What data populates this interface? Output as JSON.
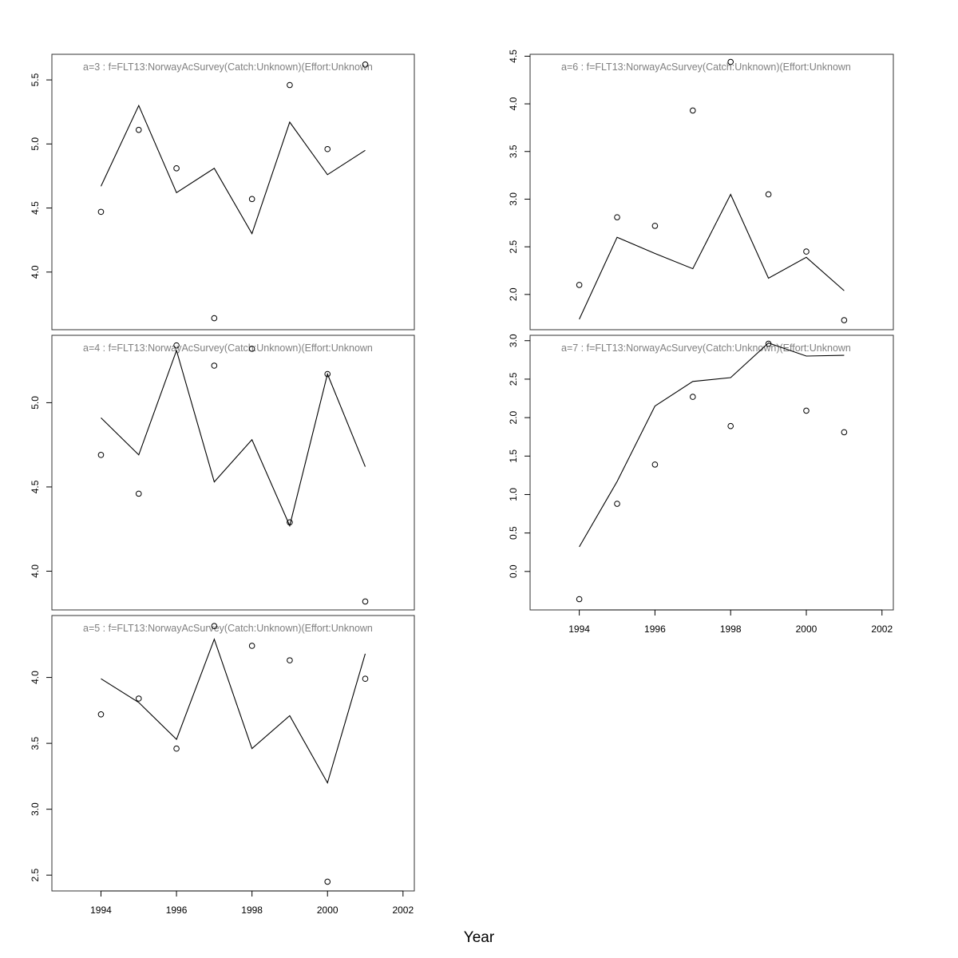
{
  "chart_data": {
    "type": "line",
    "xlabel": "Year",
    "xlim": [
      1992.7,
      2002.3
    ],
    "x_ticks": [
      1994,
      1996,
      1998,
      2000,
      2002
    ],
    "panels": [
      {
        "id": "a3",
        "title": "a=3  :  f=FLT13:NorwayAcSurvey(Catch:Unknown)(Effort:Unknown",
        "ylim": [
          3.55,
          5.7
        ],
        "y_ticks": [
          "4.0",
          "4.5",
          "5.0",
          "5.5"
        ],
        "x": [
          1994,
          1995,
          1996,
          1997,
          1998,
          1999,
          2000,
          2001
        ],
        "fitted": [
          4.67,
          5.3,
          4.62,
          4.81,
          4.3,
          5.17,
          4.76,
          4.95
        ],
        "observed": [
          4.47,
          5.11,
          4.81,
          3.64,
          4.57,
          5.46,
          4.96,
          5.62
        ]
      },
      {
        "id": "a4",
        "title": "a=4  :  f=FLT13:NorwayAcSurvey(Catch:Unknown)(Effort:Unknown",
        "ylim": [
          3.77,
          5.4
        ],
        "y_ticks": [
          "4.0",
          "4.5",
          "5.0"
        ],
        "x": [
          1994,
          1995,
          1996,
          1997,
          1998,
          1999,
          2000,
          2001
        ],
        "fitted": [
          4.91,
          4.69,
          5.31,
          4.53,
          4.78,
          4.27,
          5.17,
          4.62
        ],
        "observed": [
          4.69,
          4.46,
          5.34,
          5.22,
          5.32,
          4.29,
          5.17,
          3.82
        ]
      },
      {
        "id": "a5",
        "title": "a=5  :  f=FLT13:NorwayAcSurvey(Catch:Unknown)(Effort:Unknown",
        "ylim": [
          2.38,
          4.47
        ],
        "y_ticks": [
          "2.5",
          "3.0",
          "3.5",
          "4.0"
        ],
        "x": [
          1994,
          1995,
          1996,
          1997,
          1998,
          1999,
          2000,
          2001
        ],
        "fitted": [
          3.99,
          3.81,
          3.53,
          4.29,
          3.46,
          3.71,
          3.2,
          4.18
        ],
        "observed": [
          3.72,
          3.84,
          3.46,
          4.39,
          4.24,
          4.13,
          2.45,
          3.99
        ]
      },
      {
        "id": "a6",
        "title": "a=6  :  f=FLT13:NorwayAcSurvey(Catch:Unknown)(Effort:Unknown",
        "ylim": [
          1.63,
          4.52
        ],
        "y_ticks": [
          "2.0",
          "2.5",
          "3.0",
          "3.5",
          "4.0",
          "4.5"
        ],
        "x": [
          1994,
          1995,
          1996,
          1997,
          1998,
          1999,
          2000,
          2001
        ],
        "fitted": [
          1.74,
          2.6,
          2.43,
          2.27,
          3.05,
          2.17,
          2.39,
          2.04
        ],
        "observed": [
          2.1,
          2.81,
          2.72,
          3.93,
          4.44,
          3.05,
          2.45,
          1.73
        ]
      },
      {
        "id": "a7",
        "title": "a=7  :  f=FLT13:NorwayAcSurvey(Catch:Unknown)(Effort:Unknown",
        "ylim": [
          -0.5,
          3.07
        ],
        "y_ticks": [
          "0.0",
          "0.5",
          "1.0",
          "1.5",
          "2.0",
          "2.5",
          "3.0"
        ],
        "x": [
          1994,
          1995,
          1996,
          1997,
          1998,
          1999,
          2000,
          2001
        ],
        "fitted": [
          0.32,
          1.17,
          2.15,
          2.47,
          2.52,
          2.97,
          2.8,
          2.81
        ],
        "observed": [
          -0.36,
          0.88,
          1.39,
          2.27,
          1.89,
          2.96,
          2.09,
          1.81
        ]
      }
    ]
  }
}
